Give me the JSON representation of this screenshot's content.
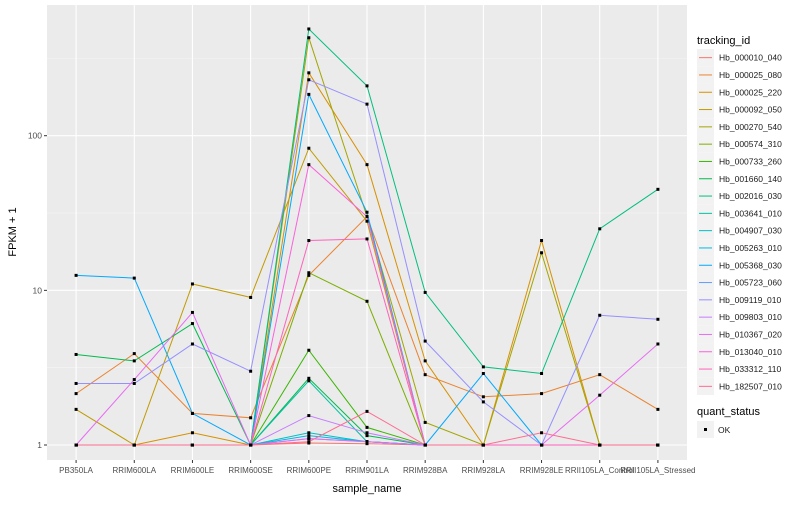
{
  "chart_data": {
    "type": "line",
    "y_scale": "log10",
    "xlabel": "sample_name",
    "ylabel": "FPKM + 1",
    "categories": [
      "PB350LA",
      "RRIM600LA",
      "RRIM600LE",
      "RRIM600SE",
      "RRIM600PE",
      "RRIM901LA",
      "RRIM928BA",
      "RRIM928LA",
      "RRIM928LE",
      "RRII105LA_Control",
      "RRII105LA_Stressed"
    ],
    "x_tick_labels": [
      "PB350LA",
      "RRIM600LA",
      "RRIM600LE",
      "RRIM600SE",
      "RRIM600PE",
      "RRIM901LA",
      "RRIM928BA",
      "RRIM928LA",
      "RRIM928LE",
      "RRII105LA_Control",
      "RRII105LA_Stressed"
    ],
    "y_ticks": [
      1,
      10,
      100
    ],
    "y_tick_labels": [
      "1",
      "10",
      "100"
    ],
    "ylim": [
      0.8,
      700
    ],
    "grid": true,
    "legend_position": "right",
    "legend_title": "tracking_id",
    "shape_legend_title": "quant_status",
    "shape_legend_items": [
      "OK"
    ],
    "series": [
      {
        "name": "Hb_000010_040",
        "color": "#F8766D",
        "values": [
          1,
          1,
          1,
          1,
          1.03,
          1.02,
          1,
          1,
          1,
          1,
          1
        ]
      },
      {
        "name": "Hb_000025_080",
        "color": "#EA8331",
        "values": [
          2.15,
          3.9,
          1.6,
          1.5,
          12.5,
          30,
          2.85,
          2.05,
          2.15,
          2.85,
          1.7
        ]
      },
      {
        "name": "Hb_000025_220",
        "color": "#D89000",
        "values": [
          1,
          1,
          1.2,
          1,
          255,
          65,
          3.5,
          1,
          21,
          1,
          1
        ]
      },
      {
        "name": "Hb_000092_050",
        "color": "#C09B00",
        "values": [
          1.7,
          1,
          11,
          9,
          83,
          28,
          1,
          1,
          1,
          1,
          1
        ]
      },
      {
        "name": "Hb_000270_540",
        "color": "#A3A500",
        "values": [
          1,
          1,
          1,
          1,
          430,
          30,
          1.4,
          1,
          17.5,
          1,
          1
        ]
      },
      {
        "name": "Hb_000574_310",
        "color": "#7CAE00",
        "values": [
          1,
          1,
          1,
          1,
          13,
          8.5,
          1,
          1,
          1,
          1,
          1
        ]
      },
      {
        "name": "Hb_000733_260",
        "color": "#39B600",
        "values": [
          1,
          1,
          1,
          1,
          4.1,
          1.3,
          1,
          1,
          1,
          1,
          1
        ]
      },
      {
        "name": "Hb_001660_140",
        "color": "#00BB4E",
        "values": [
          3.85,
          3.5,
          6.1,
          1,
          2.7,
          1.15,
          1,
          1,
          1,
          1,
          1
        ]
      },
      {
        "name": "Hb_002016_030",
        "color": "#00BF7D",
        "values": [
          1,
          1,
          1,
          1,
          490,
          210,
          9.7,
          3.2,
          2.9,
          25,
          45
        ]
      },
      {
        "name": "Hb_003641_010",
        "color": "#00C1A3",
        "values": [
          1,
          1,
          1,
          1,
          2.6,
          1.05,
          1,
          1,
          1,
          1,
          1
        ]
      },
      {
        "name": "Hb_004907_030",
        "color": "#00BFC4",
        "values": [
          1,
          1,
          1,
          1,
          1.2,
          1.05,
          1,
          1,
          1,
          1,
          1
        ]
      },
      {
        "name": "Hb_005263_010",
        "color": "#00B8E7",
        "values": [
          1,
          1,
          1,
          1,
          1.15,
          1.05,
          1,
          1,
          1,
          1,
          1
        ]
      },
      {
        "name": "Hb_005368_030",
        "color": "#00A9FF",
        "values": [
          12.5,
          12,
          1.6,
          1,
          185,
          32,
          1,
          2.9,
          1,
          1,
          1
        ]
      },
      {
        "name": "Hb_005723_060",
        "color": "#619CFF",
        "values": [
          1,
          1,
          1,
          1,
          1.1,
          1.05,
          1,
          1,
          1,
          1,
          1
        ]
      },
      {
        "name": "Hb_009119_010",
        "color": "#9590FF",
        "values": [
          2.5,
          2.5,
          4.5,
          3,
          230,
          160,
          4.7,
          1.9,
          1,
          6.9,
          6.5
        ]
      },
      {
        "name": "Hb_009803_010",
        "color": "#C77CFF",
        "values": [
          1,
          1,
          1,
          1,
          1.55,
          1.2,
          1,
          1,
          1,
          1,
          1
        ]
      },
      {
        "name": "Hb_010367_020",
        "color": "#E76BF3",
        "values": [
          1,
          2.65,
          7.2,
          1,
          1.1,
          1.05,
          1,
          1,
          1,
          2.1,
          4.5
        ]
      },
      {
        "name": "Hb_013040_010",
        "color": "#FA62DB",
        "values": [
          1,
          1,
          1,
          1,
          65,
          30,
          1,
          1,
          1,
          1,
          1
        ]
      },
      {
        "name": "Hb_033312_110",
        "color": "#FF62BC",
        "values": [
          1,
          1,
          1,
          1,
          21,
          21.5,
          1,
          1,
          1,
          1,
          1
        ]
      },
      {
        "name": "Hb_182507_010",
        "color": "#FF6C91",
        "values": [
          1,
          1,
          1,
          1,
          1.05,
          1.65,
          1,
          1,
          1.2,
          1,
          1
        ]
      }
    ]
  }
}
